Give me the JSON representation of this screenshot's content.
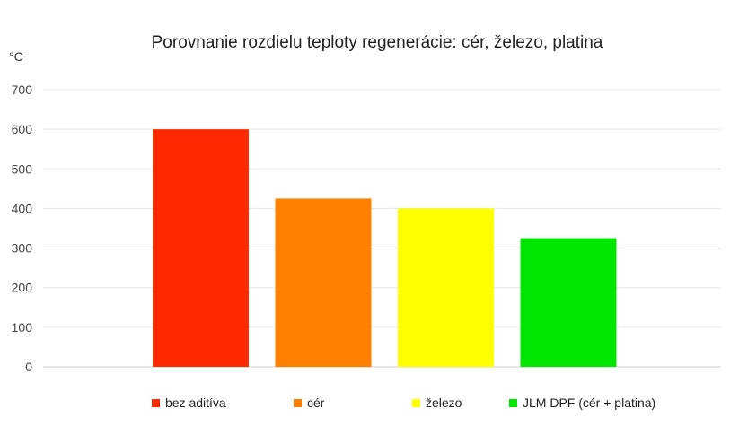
{
  "chart_data": {
    "type": "bar",
    "title": "Porovnanie rozdielu teploty regenerácie: cér, železo, platina",
    "ylabel": "°C",
    "xlabel": "",
    "ylim": [
      0,
      700
    ],
    "yticks": [
      0,
      100,
      200,
      300,
      400,
      500,
      600,
      700
    ],
    "grid": true,
    "legend_position": "bottom",
    "series": [
      {
        "name": "bez aditíva",
        "value": 600,
        "color": "#ff2a00"
      },
      {
        "name": "cér",
        "value": 425,
        "color": "#ff7f00"
      },
      {
        "name": "železo",
        "value": 400,
        "color": "#ffff00"
      },
      {
        "name": "JLM DPF (cér + platina)",
        "value": 325,
        "color": "#00e600"
      }
    ]
  }
}
